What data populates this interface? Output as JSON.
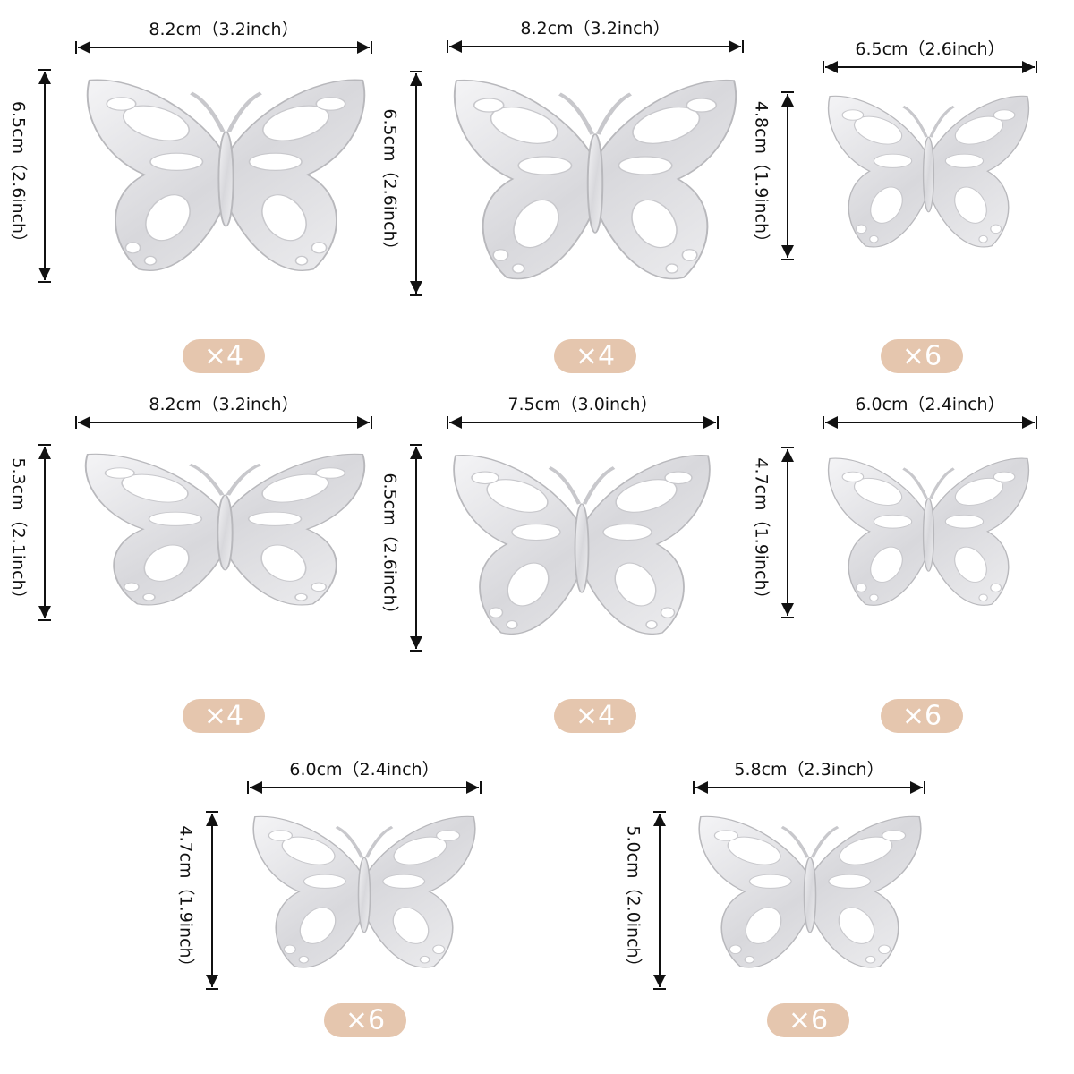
{
  "items": [
    {
      "width": "8.2cm（3.2inch）",
      "height": "6.5cm（2.6inch）",
      "count": "×4"
    },
    {
      "width": "8.2cm（3.2inch）",
      "height": "6.5cm（2.6inch）",
      "count": "×4"
    },
    {
      "width": "6.5cm（2.6inch）",
      "height": "4.8cm（1.9inch）",
      "count": "×6"
    },
    {
      "width": "8.2cm（3.2inch）",
      "height": "5.3cm（2.1inch）",
      "count": "×4"
    },
    {
      "width": "7.5cm（3.0inch）",
      "height": "6.5cm（2.6inch）",
      "count": "×4"
    },
    {
      "width": "6.0cm（2.4inch）",
      "height": "4.7cm（1.9inch）",
      "count": "×6"
    },
    {
      "width": "6.0cm（2.4inch）",
      "height": "4.7cm（1.9inch）",
      "count": "×6"
    },
    {
      "width": "5.8cm（2.3inch）",
      "height": "5.0cm（2.0inch）",
      "count": "×6"
    }
  ]
}
